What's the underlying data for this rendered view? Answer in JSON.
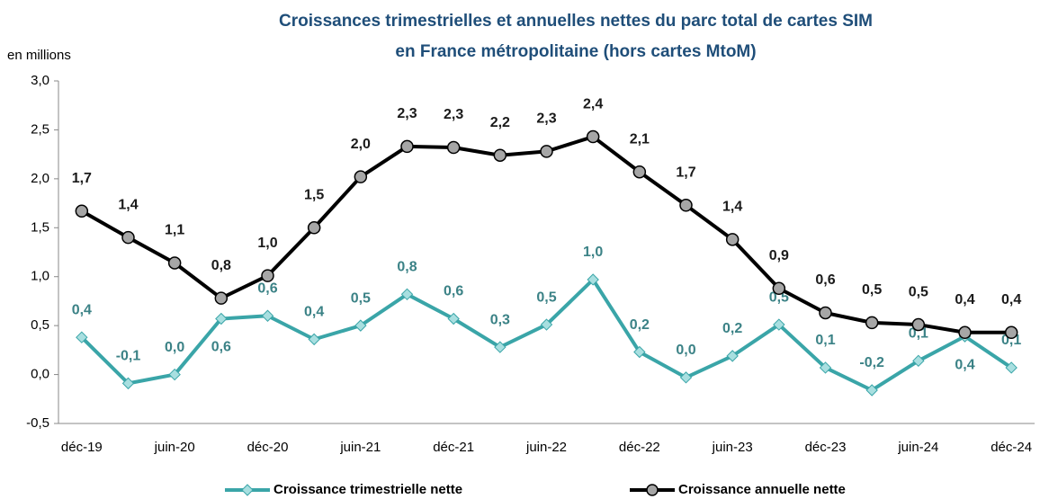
{
  "chart_data": {
    "type": "line",
    "title": [
      "Croissances trimestrielles et annuelles nettes du parc total de cartes SIM",
      "en France métropolitaine (hors cartes MtoM)"
    ],
    "y_axis_label": "en millions",
    "categories": [
      "déc-19",
      null,
      "juin-20",
      null,
      "déc-20",
      null,
      "juin-21",
      null,
      "déc-21",
      null,
      "juin-22",
      null,
      "déc-22",
      null,
      "juin-23",
      null,
      "déc-23",
      null,
      "juin-24",
      null,
      "déc-24"
    ],
    "ylim": [
      -0.5,
      3.0
    ],
    "yticks": [
      {
        "value": -0.5,
        "label": "-0,5"
      },
      {
        "value": 0,
        "label": "0,0"
      },
      {
        "value": 0.5,
        "label": "0,5"
      },
      {
        "value": 1.0,
        "label": "1,0"
      },
      {
        "value": 1.5,
        "label": "1,5"
      },
      {
        "value": 2.0,
        "label": "2,0"
      },
      {
        "value": 2.5,
        "label": "2,5"
      },
      {
        "value": 3.0,
        "label": "3,0"
      }
    ],
    "grid": false,
    "legend": "bottom",
    "series": [
      {
        "name": "Croissance trimestrielle nette",
        "color": "#3aa5a8",
        "marker_color": "#a8dfe0",
        "label_color": "#3b8286",
        "marker": "diamond",
        "values": [
          0.38,
          -0.09,
          0,
          0.57,
          0.6,
          0.36,
          0.5,
          0.82,
          0.57,
          0.28,
          0.51,
          0.97,
          0.23,
          -0.03,
          0.19,
          0.51,
          0.07,
          -0.16,
          0.14,
          0.39,
          0.07
        ],
        "value_labels": [
          "0,4",
          "-0,1",
          "0,0",
          "0,6",
          "0,6",
          "0,4",
          "0,5",
          "0,8",
          "0,6",
          "0,3",
          "0,5",
          "1,0",
          "0,2",
          "0,0",
          "0,2",
          "0,5",
          "0,1",
          "-0,2",
          "0,1",
          "0,4",
          "0,1"
        ]
      },
      {
        "name": "Croissance annuelle nette",
        "color": "#000000",
        "marker_color": "#a6a6a6",
        "label_color": "#1a1a1a",
        "marker": "circle",
        "values": [
          1.67,
          1.4,
          1.14,
          0.78,
          1.01,
          1.5,
          2.02,
          2.33,
          2.32,
          2.24,
          2.28,
          2.43,
          2.07,
          1.73,
          1.38,
          0.88,
          0.63,
          0.53,
          0.51,
          0.43,
          0.43
        ],
        "value_labels": [
          "1,7",
          "1,4",
          "1,1",
          "0,8",
          "1,0",
          "1,5",
          "2,0",
          "2,3",
          "2,3",
          "2,2",
          "2,3",
          "2,4",
          "2,1",
          "1,7",
          "1,4",
          "0,9",
          "0,6",
          "0,5",
          "0,5",
          "0,4",
          "0,4"
        ]
      }
    ]
  }
}
